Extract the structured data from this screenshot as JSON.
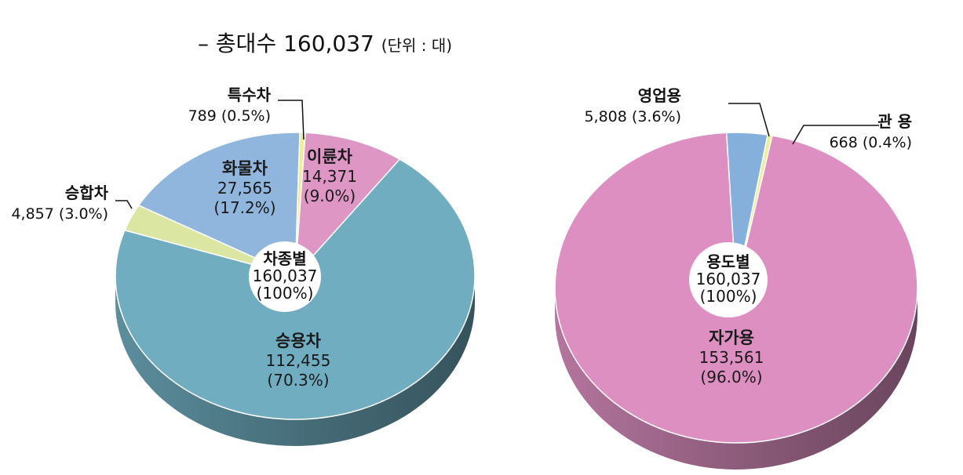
{
  "header": {
    "title": "– 총대수 160,037",
    "unit": "(단위 : 대)"
  },
  "chart_data": [
    {
      "type": "pie",
      "center": {
        "name": "차종별",
        "value": "160,037",
        "percent": "(100%)"
      },
      "slices": [
        {
          "name": "특수차",
          "value": 789,
          "value_label": "789",
          "percent": "(0.5%)",
          "color": "#f1ec9a"
        },
        {
          "name": "이륜차",
          "value": 14371,
          "value_label": "14,371",
          "percent": "(9.0%)",
          "color": "#de97c4"
        },
        {
          "name": "승용차",
          "value": 112455,
          "value_label": "112,455",
          "percent": "(70.3%)",
          "color": "#70adc0"
        },
        {
          "name": "승합차",
          "value": 4857,
          "value_label": "4,857",
          "percent": "(3.0%)",
          "color": "#dbe6a2"
        },
        {
          "name": "화물차",
          "value": 27565,
          "value_label": "27,565",
          "percent": "(17.2%)",
          "color": "#91b6de"
        }
      ]
    },
    {
      "type": "pie",
      "center": {
        "name": "용도별",
        "value": "160,037",
        "percent": "(100%)"
      },
      "slices": [
        {
          "name": "관 용",
          "value": 668,
          "value_label": "668",
          "percent": "(0.4%)",
          "color": "#f1ec9a"
        },
        {
          "name": "자가용",
          "value": 153561,
          "value_label": "153,561",
          "percent": "(96.0%)",
          "color": "#dd8fc1"
        },
        {
          "name": "영업용",
          "value": 5808,
          "value_label": "5,808",
          "percent": "(3.6%)",
          "color": "#86b0dc"
        }
      ]
    }
  ]
}
